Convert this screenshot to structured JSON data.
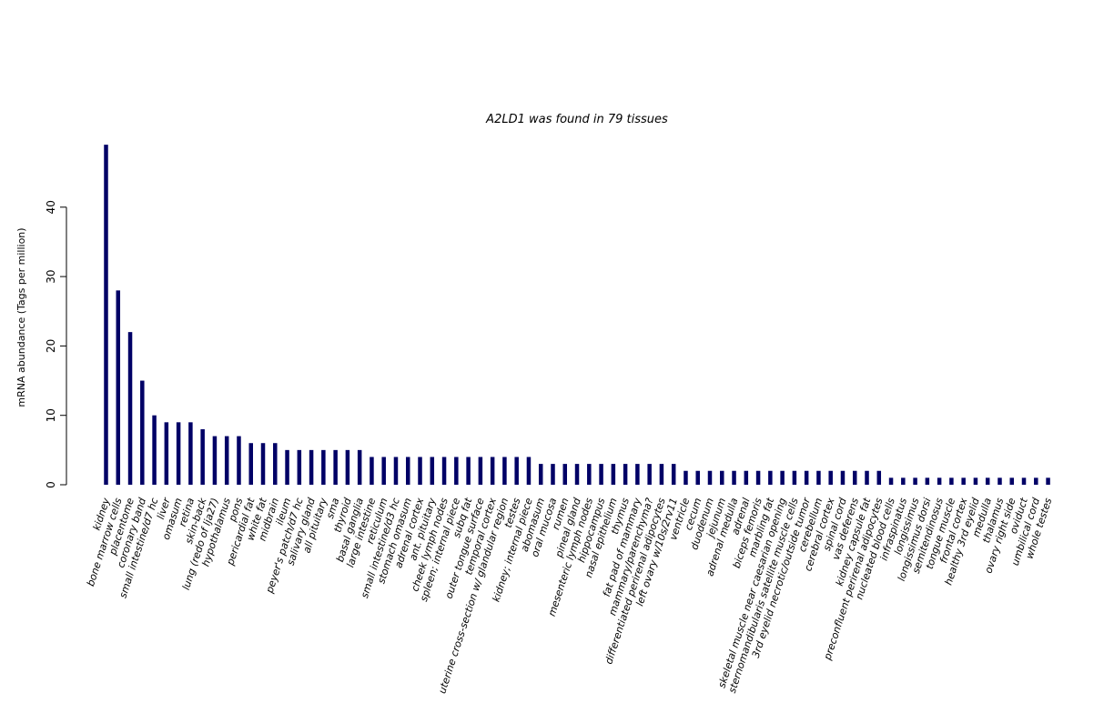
{
  "chart_data": {
    "type": "bar",
    "title": "A2LD1  was found in  79  tissues",
    "xlabel": "",
    "ylabel": "mRNA abundance (Tags per million)",
    "ylim": [
      0,
      49
    ],
    "yticks": [
      0,
      10,
      20,
      30,
      40
    ],
    "grid": false,
    "bar_color": "#000066",
    "categories": [
      "kidney",
      "bone marrow cells",
      "placentome",
      "coronary band",
      "small intestine/d7 hc",
      "liver",
      "omasum",
      "retina",
      "skin-back",
      "lung (redo of lja27)",
      "hypothalamus",
      "pons",
      "pericardial fat",
      "white fat",
      "midbrain",
      "ileum",
      "peyer's patch/d7 hc",
      "salivary gland",
      "all pituitary",
      "sma",
      "thyroid",
      "basal ganglia",
      "large intestine",
      "reticulum",
      "small intestine/d3 hc",
      "stomach omasum",
      "adrenal cortex",
      "ant. pituitary",
      "cheek lymph nodes",
      "spleen; internal piece",
      "subq fat",
      "outer tongue surface",
      "temporal cortex",
      "uterine cross-section w/ glandular region",
      "testes",
      "kidney; internal piece",
      "abomasum",
      "oral mucosa",
      "rumen",
      "pineal gland",
      "mesenteric lymph nodes",
      "hippocampus",
      "nasal epithelium",
      "thymus",
      "fat pad of mammary",
      "mammary/parenchyma?",
      "differentiated perirenal adipocytes",
      "left ovary w/10s/2rv11",
      "ventricle",
      "cecum",
      "duodenum",
      "jejunum",
      "adrenal medulla",
      "adrenal",
      "biceps femoris",
      "marbling fat",
      "skeletal muscle near caesarian opening",
      "sternomandibularis satellite muscle cells",
      "3rd eyelid necrotic/outside tumor",
      "cerebellum",
      "cerebral cortex",
      "spinal cord",
      "vas deferens",
      "kidney capsule fat",
      "preconfluent perirenal adipocytes",
      "nucleated blood cells",
      "infraspinatus",
      "longissimus",
      "longissimus dorsi",
      "semitendinosus",
      "tongue muscle",
      "frontal cortex",
      "healthy 3rd eyelid",
      "medulla",
      "thalamus",
      "ovary right side",
      "oviduct",
      "umbilical cord",
      "whole testes"
    ],
    "values": [
      49,
      28,
      22,
      15,
      10,
      9,
      9,
      9,
      8,
      7,
      7,
      7,
      6,
      6,
      6,
      5,
      5,
      5,
      5,
      5,
      5,
      5,
      4,
      4,
      4,
      4,
      4,
      4,
      4,
      4,
      4,
      4,
      4,
      4,
      4,
      4,
      3,
      3,
      3,
      3,
      3,
      3,
      3,
      3,
      3,
      3,
      3,
      3,
      2,
      2,
      2,
      2,
      2,
      2,
      2,
      2,
      2,
      2,
      2,
      2,
      2,
      2,
      2,
      2,
      2,
      1,
      1,
      1,
      1,
      1,
      1,
      1,
      1,
      1,
      1,
      1,
      1,
      1,
      1
    ]
  }
}
